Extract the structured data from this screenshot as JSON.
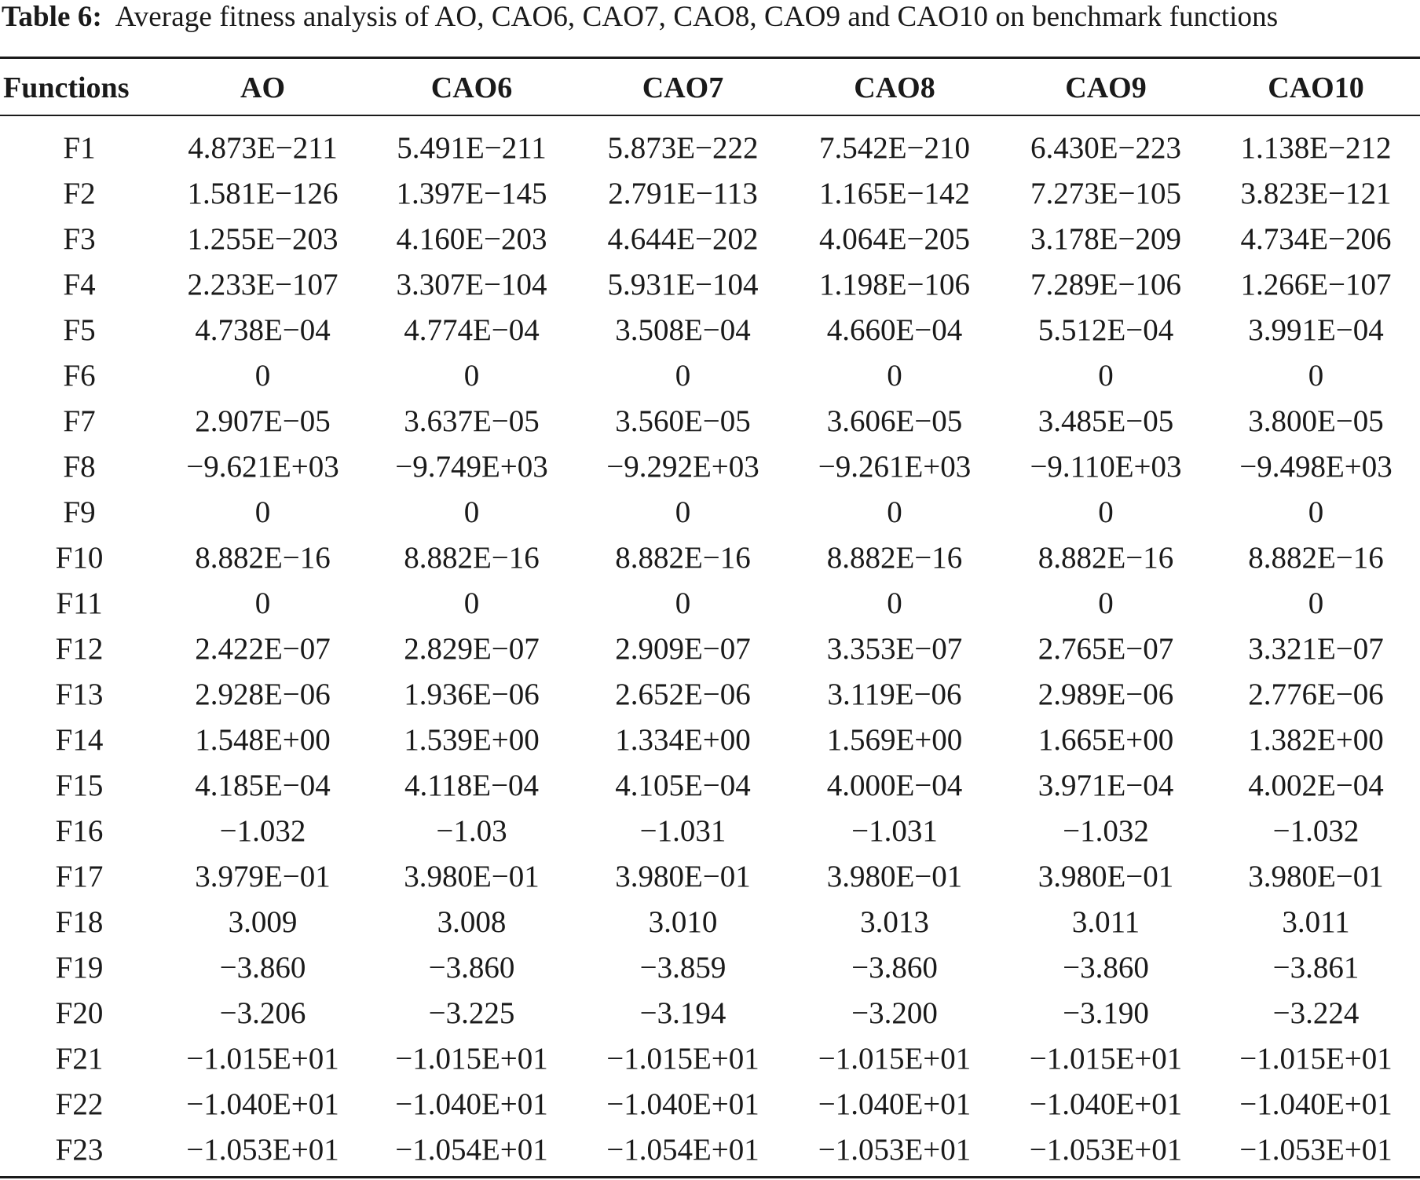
{
  "caption": {
    "label": "Table 6:",
    "text": "Average fitness analysis of AO, CAO6, CAO7, CAO8, CAO9 and CAO10 on benchmark functions"
  },
  "table": {
    "headers": [
      "Functions",
      "AO",
      "CAO6",
      "CAO7",
      "CAO8",
      "CAO9",
      "CAO10"
    ],
    "rows": [
      [
        "F1",
        "4.873E−211",
        "5.491E−211",
        "5.873E−222",
        "7.542E−210",
        "6.430E−223",
        "1.138E−212"
      ],
      [
        "F2",
        "1.581E−126",
        "1.397E−145",
        "2.791E−113",
        "1.165E−142",
        "7.273E−105",
        "3.823E−121"
      ],
      [
        "F3",
        "1.255E−203",
        "4.160E−203",
        "4.644E−202",
        "4.064E−205",
        "3.178E−209",
        "4.734E−206"
      ],
      [
        "F4",
        "2.233E−107",
        "3.307E−104",
        "5.931E−104",
        "1.198E−106",
        "7.289E−106",
        "1.266E−107"
      ],
      [
        "F5",
        "4.738E−04",
        "4.774E−04",
        "3.508E−04",
        "4.660E−04",
        "5.512E−04",
        "3.991E−04"
      ],
      [
        "F6",
        "0",
        "0",
        "0",
        "0",
        "0",
        "0"
      ],
      [
        "F7",
        "2.907E−05",
        "3.637E−05",
        "3.560E−05",
        "3.606E−05",
        "3.485E−05",
        "3.800E−05"
      ],
      [
        "F8",
        "−9.621E+03",
        "−9.749E+03",
        "−9.292E+03",
        "−9.261E+03",
        "−9.110E+03",
        "−9.498E+03"
      ],
      [
        "F9",
        "0",
        "0",
        "0",
        "0",
        "0",
        "0"
      ],
      [
        "F10",
        "8.882E−16",
        "8.882E−16",
        "8.882E−16",
        "8.882E−16",
        "8.882E−16",
        "8.882E−16"
      ],
      [
        "F11",
        "0",
        "0",
        "0",
        "0",
        "0",
        "0"
      ],
      [
        "F12",
        "2.422E−07",
        "2.829E−07",
        "2.909E−07",
        "3.353E−07",
        "2.765E−07",
        "3.321E−07"
      ],
      [
        "F13",
        "2.928E−06",
        "1.936E−06",
        "2.652E−06",
        "3.119E−06",
        "2.989E−06",
        "2.776E−06"
      ],
      [
        "F14",
        "1.548E+00",
        "1.539E+00",
        "1.334E+00",
        "1.569E+00",
        "1.665E+00",
        "1.382E+00"
      ],
      [
        "F15",
        "4.185E−04",
        "4.118E−04",
        "4.105E−04",
        "4.000E−04",
        "3.971E−04",
        "4.002E−04"
      ],
      [
        "F16",
        "−1.032",
        "−1.03",
        "−1.031",
        "−1.031",
        "−1.032",
        "−1.032"
      ],
      [
        "F17",
        "3.979E−01",
        "3.980E−01",
        "3.980E−01",
        "3.980E−01",
        "3.980E−01",
        "3.980E−01"
      ],
      [
        "F18",
        "3.009",
        "3.008",
        "3.010",
        "3.013",
        "3.011",
        "3.011"
      ],
      [
        "F19",
        "−3.860",
        "−3.860",
        "−3.859",
        "−3.860",
        "−3.860",
        "−3.861"
      ],
      [
        "F20",
        "−3.206",
        "−3.225",
        "−3.194",
        "−3.200",
        "−3.190",
        "−3.224"
      ],
      [
        "F21",
        "−1.015E+01",
        "−1.015E+01",
        "−1.015E+01",
        "−1.015E+01",
        "−1.015E+01",
        "−1.015E+01"
      ],
      [
        "F22",
        "−1.040E+01",
        "−1.040E+01",
        "−1.040E+01",
        "−1.040E+01",
        "−1.040E+01",
        "−1.040E+01"
      ],
      [
        "F23",
        "−1.053E+01",
        "−1.054E+01",
        "−1.054E+01",
        "−1.053E+01",
        "−1.053E+01",
        "−1.053E+01"
      ]
    ]
  }
}
